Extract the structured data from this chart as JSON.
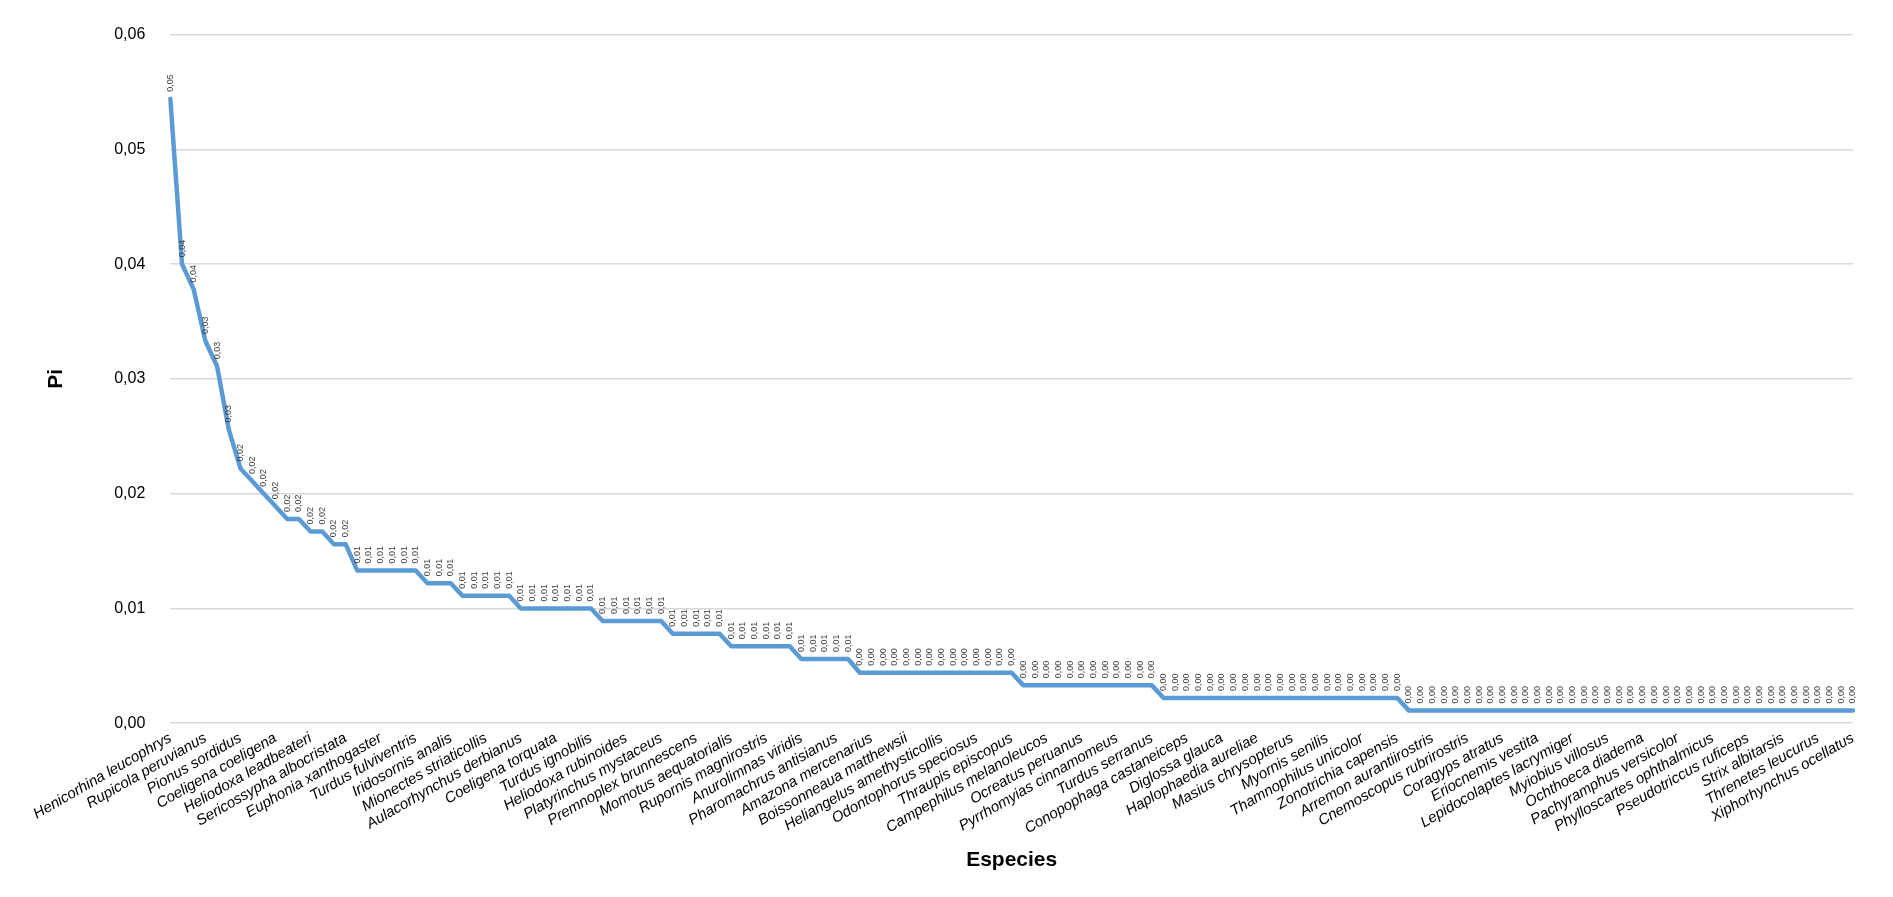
{
  "chart_data": {
    "type": "line",
    "xlabel": "Especies",
    "ylabel": "Pi",
    "categories": [
      "Henicorhina leucophrys",
      null,
      null,
      "Rupicola peruvianus",
      null,
      null,
      "Pionus sordidus",
      null,
      null,
      "Coeligena coeligena",
      null,
      null,
      "Heliodoxa leadbeateri",
      null,
      null,
      "Sericossypha albocristata",
      null,
      null,
      "Euphonia xanthogaster",
      null,
      null,
      "Turdus fulviventris",
      null,
      null,
      "Iridosornis analis",
      null,
      null,
      "Mionectes striaticollis",
      null,
      null,
      "Aulacorhynchus derbianus",
      null,
      null,
      "Coeligena torquata",
      null,
      null,
      "Turdus ignobilis",
      null,
      null,
      "Heliodoxa rubinoides",
      null,
      null,
      "Platyrinchus mystaceus",
      null,
      null,
      "Premnoplex brunnescens",
      null,
      null,
      "Momotus aequatorialis",
      null,
      null,
      "Rupornis magnirostris",
      null,
      null,
      "Anurolimnas viridis",
      null,
      null,
      "Pharomachrus antisianus",
      null,
      null,
      "Amazona mercenarius",
      null,
      null,
      "Boissonneaua matthewsii",
      null,
      null,
      "Heliangelus amethysticollis",
      null,
      null,
      "Odontophorus speciosus",
      null,
      null,
      "Thraupis episcopus",
      null,
      null,
      "Campephilus melanoleucos",
      null,
      null,
      "Ocreatus peruanus",
      null,
      null,
      "Pyrrhomyias cinnamomeus",
      null,
      null,
      "Turdus serranus",
      null,
      null,
      "Conopophaga castaneiceps",
      null,
      null,
      "Diglossa glauca",
      null,
      null,
      "Haplophaedia aureliae",
      null,
      null,
      "Masius chrysopterus",
      null,
      null,
      "Myornis senilis",
      null,
      null,
      "Thamnophilus unicolor",
      null,
      null,
      "Zonotrichia capensis",
      null,
      null,
      "Arremon aurantiirostris",
      null,
      null,
      "Cnemoscopus rubrirostris",
      null,
      null,
      "Coragyps atratus",
      null,
      null,
      "Eriocnemis vestita",
      null,
      null,
      "Lepidocolaptes lacrymiger",
      null,
      null,
      "Myiobius villosus",
      null,
      null,
      "Ochthoeca diadema",
      null,
      null,
      "Pachyramphus versicolor",
      null,
      null,
      "Phylloscartes ophthalmicus",
      null,
      null,
      "Pseudotriccus ruficeps",
      null,
      null,
      "Strix albitarsis",
      null,
      null,
      "Threnetes leucurus",
      null,
      null,
      "Xiphorhynchus ocellatus"
    ],
    "series": [
      {
        "color": "#5b9bd5",
        "values": [
          0.0544,
          0.04,
          0.0378,
          0.0333,
          0.0311,
          0.0256,
          0.0222,
          0.0211,
          0.02,
          0.0189,
          0.0178,
          0.0178,
          0.0167,
          0.0167,
          0.0156,
          0.0156,
          0.0133,
          0.0133,
          0.0133,
          0.0133,
          0.0133,
          0.0133,
          0.0122,
          0.0122,
          0.0122,
          0.0111,
          0.0111,
          0.0111,
          0.0111,
          0.0111,
          0.01,
          0.01,
          0.01,
          0.01,
          0.01,
          0.01,
          0.01,
          0.0089,
          0.0089,
          0.0089,
          0.0089,
          0.0089,
          0.0089,
          0.0078,
          0.0078,
          0.0078,
          0.0078,
          0.0078,
          0.0067,
          0.0067,
          0.0067,
          0.0067,
          0.0067,
          0.0067,
          0.0056,
          0.0056,
          0.0056,
          0.0056,
          0.0056,
          0.0044,
          0.0044,
          0.0044,
          0.0044,
          0.0044,
          0.0044,
          0.0044,
          0.0044,
          0.0044,
          0.0044,
          0.0044,
          0.0044,
          0.0044,
          0.0044,
          0.0033,
          0.0033,
          0.0033,
          0.0033,
          0.0033,
          0.0033,
          0.0033,
          0.0033,
          0.0033,
          0.0033,
          0.0033,
          0.0033,
          0.0022,
          0.0022,
          0.0022,
          0.0022,
          0.0022,
          0.0022,
          0.0022,
          0.0022,
          0.0022,
          0.0022,
          0.0022,
          0.0022,
          0.0022,
          0.0022,
          0.0022,
          0.0022,
          0.0022,
          0.0022,
          0.0022,
          0.0022,
          0.0022,
          0.0011,
          0.0011,
          0.0011,
          0.0011,
          0.0011,
          0.0011,
          0.0011,
          0.0011,
          0.0011,
          0.0011,
          0.0011,
          0.0011,
          0.0011,
          0.0011,
          0.0011,
          0.0011,
          0.0011,
          0.0011,
          0.0011,
          0.0011,
          0.0011,
          0.0011,
          0.0011,
          0.0011,
          0.0011,
          0.0011,
          0.0011,
          0.0011,
          0.0011,
          0.0011,
          0.0011,
          0.0011,
          0.0011,
          0.0011,
          0.0011,
          0.0011,
          0.0011,
          0.0011,
          0.0011
        ],
        "value_labels": [
          "0,05",
          "0,04",
          "0,04",
          "0,03",
          "0,03",
          "0,03",
          "0,02",
          "0,02",
          "0,02",
          "0,02",
          "0,02",
          "0,02",
          "0,02",
          "0,02",
          "0,02",
          "0,02",
          "0,01",
          "0,01",
          "0,01",
          "0,01",
          "0,01",
          "0,01",
          "0,01",
          "0,01",
          "0,01",
          "0,01",
          "0,01",
          "0,01",
          "0,01",
          "0,01",
          "0,01",
          "0,01",
          "0,01",
          "0,01",
          "0,01",
          "0,01",
          "0,01",
          "0,01",
          "0,01",
          "0,01",
          "0,01",
          "0,01",
          "0,01",
          "0,01",
          "0,01",
          "0,01",
          "0,01",
          "0,01",
          "0,01",
          "0,01",
          "0,01",
          "0,01",
          "0,01",
          "0,01",
          "0,01",
          "0,01",
          "0,01",
          "0,01",
          "0,01",
          "0,00",
          "0,00",
          "0,00",
          "0,00",
          "0,00",
          "0,00",
          "0,00",
          "0,00",
          "0,00",
          "0,00",
          "0,00",
          "0,00",
          "0,00",
          "0,00",
          "0,00",
          "0,00",
          "0,00",
          "0,00",
          "0,00",
          "0,00",
          "0,00",
          "0,00",
          "0,00",
          "0,00",
          "0,00",
          "0,00",
          "0,00",
          "0,00",
          "0,00",
          "0,00",
          "0,00",
          "0,00",
          "0,00",
          "0,00",
          "0,00",
          "0,00",
          "0,00",
          "0,00",
          "0,00",
          "0,00",
          "0,00",
          "0,00",
          "0,00",
          "0,00",
          "0,00",
          "0,00",
          "0,00",
          "0,00",
          "0,00",
          "0,00",
          "0,00",
          "0,00",
          "0,00",
          "0,00",
          "0,00",
          "0,00",
          "0,00",
          "0,00",
          "0,00",
          "0,00",
          "0,00",
          "0,00",
          "0,00",
          "0,00",
          "0,00",
          "0,00",
          "0,00",
          "0,00",
          "0,00",
          "0,00",
          "0,00",
          "0,00",
          "0,00",
          "0,00",
          "0,00",
          "0,00",
          "0,00",
          "0,00",
          "0,00",
          "0,00",
          "0,00",
          "0,00",
          "0,00",
          "0,00",
          "0,00",
          "0,00"
        ]
      }
    ],
    "ylim": [
      0,
      0.06
    ],
    "yticks": [
      {
        "value": 0,
        "label": "0,00"
      },
      {
        "value": 0.01,
        "label": "0,01"
      },
      {
        "value": 0.02,
        "label": "0,02"
      },
      {
        "value": 0.03,
        "label": "0,03"
      },
      {
        "value": 0.04,
        "label": "0,04"
      },
      {
        "value": 0.05,
        "label": "0,05"
      },
      {
        "value": 0.06,
        "label": "0,06"
      }
    ],
    "grid": "y",
    "line_style": "solid",
    "legend": false
  }
}
